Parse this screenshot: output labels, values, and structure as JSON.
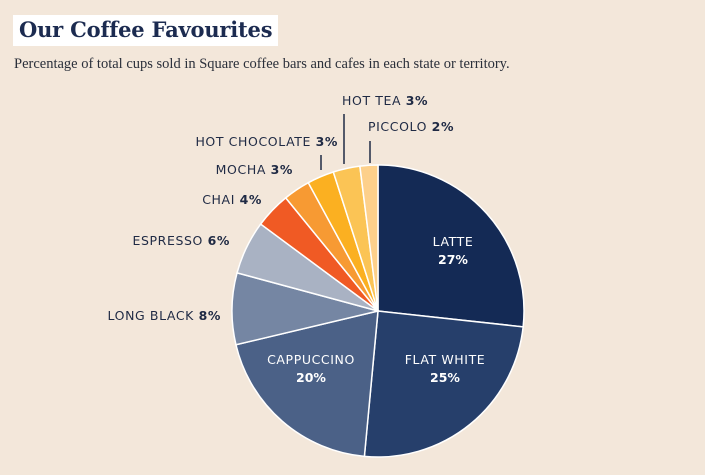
{
  "header": {
    "title": "Our Coffee Favourites",
    "subtitle": "Percentage of total cups sold in Square coffee bars and cafes in each state or territory."
  },
  "chart_data": {
    "type": "pie",
    "title": "Our Coffee Favourites",
    "subtitle": "Percentage of total cups sold in Square coffee bars and cafes in each state or territory.",
    "unit": "%",
    "slices": [
      {
        "name": "LATTE",
        "pct_label": "27%",
        "value": 27,
        "color": "#142a55"
      },
      {
        "name": "FLAT WHITE",
        "pct_label": "25%",
        "value": 25,
        "color": "#263f6b"
      },
      {
        "name": "CAPPUCCINO",
        "pct_label": "20%",
        "value": 20,
        "color": "#4b6187"
      },
      {
        "name": "LONG BLACK",
        "pct_label": "8%",
        "value": 8,
        "color": "#7586a3"
      },
      {
        "name": "ESPRESSO",
        "pct_label": "6%",
        "value": 6,
        "color": "#a9b2c3"
      },
      {
        "name": "CHAI",
        "pct_label": "4%",
        "value": 4,
        "color": "#f05a24"
      },
      {
        "name": "MOCHA",
        "pct_label": "3%",
        "value": 3,
        "color": "#f79a33"
      },
      {
        "name": "HOT CHOCOLATE",
        "pct_label": "3%",
        "value": 3,
        "color": "#fbb021"
      },
      {
        "name": "HOT TEA",
        "pct_label": "3%",
        "value": 3,
        "color": "#fbc455"
      },
      {
        "name": "PICCOLO",
        "pct_label": "2%",
        "value": 2,
        "color": "#fdd08b"
      }
    ]
  }
}
